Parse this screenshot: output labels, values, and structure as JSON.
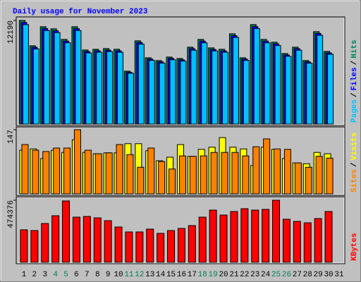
{
  "title": "Daily usage for November 2023",
  "chart_data": [
    {
      "type": "bar",
      "ylim": [
        0,
        12190
      ],
      "yticks": [
        12190
      ],
      "legend_separator": "/",
      "series": [
        {
          "name": "Hits",
          "color": "#00805c",
          "values": [
            12190,
            9213,
            11454,
            11205,
            9960,
            11454,
            8715,
            8798,
            8881,
            8798,
            6225,
            9794,
            7802,
            7470,
            7885,
            7719,
            9047,
            9960,
            8964,
            8798,
            10624,
            7802,
            11703,
            9960,
            9628,
            8300,
            9047,
            7470,
            10873,
            8549,
            null
          ]
        },
        {
          "name": "Files",
          "color": "#0000ff",
          "values": [
            11950,
            9030,
            11230,
            10980,
            9760,
            11220,
            8540,
            8620,
            8700,
            8620,
            6100,
            9600,
            7650,
            7320,
            7730,
            7560,
            8870,
            9760,
            8780,
            8620,
            10410,
            7650,
            11470,
            9760,
            9440,
            8130,
            8870,
            7320,
            10660,
            8380,
            null
          ]
        },
        {
          "name": "Pages",
          "color": "#00c0ff",
          "values": [
            11700,
            8840,
            11000,
            10760,
            9560,
            11000,
            8370,
            8450,
            8530,
            8450,
            5980,
            9400,
            7490,
            7170,
            7570,
            7410,
            8690,
            9560,
            8610,
            8450,
            10200,
            7490,
            11230,
            9560,
            9240,
            7970,
            8690,
            7170,
            10440,
            8210,
            null
          ]
        }
      ]
    },
    {
      "type": "bar",
      "ylim": [
        0,
        147
      ],
      "yticks": [
        147
      ],
      "legend_separator": "/",
      "series": [
        {
          "name": "Visits",
          "color": "#ffff00",
          "values": [
            100,
            103,
            81,
            100,
            95,
            124,
            95,
            92,
            94,
            94,
            115,
            115,
            99,
            76,
            84,
            113,
            86,
            102,
            107,
            129,
            107,
            103,
            65,
            107,
            102,
            81,
            71,
            69,
            95,
            92,
            null
          ]
        },
        {
          "name": "Sites",
          "color": "#ff8000",
          "values": [
            113,
            100,
            97,
            105,
            105,
            147,
            100,
            92,
            94,
            113,
            90,
            61,
            105,
            74,
            57,
            87,
            86,
            87,
            95,
            95,
            95,
            87,
            108,
            126,
            103,
            102,
            71,
            61,
            86,
            82,
            null
          ]
        }
      ]
    },
    {
      "type": "bar",
      "ylim": [
        0,
        474376
      ],
      "yticks": [
        474376
      ],
      "categories": [
        "1",
        "2",
        "3",
        "4",
        "5",
        "6",
        "7",
        "8",
        "9",
        "10",
        "11",
        "12",
        "13",
        "14",
        "15",
        "16",
        "17",
        "18",
        "19",
        "20",
        "21",
        "22",
        "23",
        "24",
        "25",
        "26",
        "27",
        "28",
        "29",
        "30",
        "31"
      ],
      "category_colors": [
        "#000000",
        "#000000",
        "#000000",
        "#00805c",
        "#00805c",
        "#000000",
        "#000000",
        "#000000",
        "#000000",
        "#000000",
        "#00805c",
        "#00805c",
        "#000000",
        "#000000",
        "#000000",
        "#000000",
        "#000000",
        "#00805c",
        "#00805c",
        "#000000",
        "#000000",
        "#000000",
        "#000000",
        "#000000",
        "#00805c",
        "#00805c",
        "#000000",
        "#000000",
        "#000000",
        "#000000",
        "#000000"
      ],
      "series": [
        {
          "name": "KBytes",
          "color": "#ff0000",
          "values": [
            247968,
            242577,
            296483,
            355780,
            468982,
            344998,
            350389,
            339608,
            318045,
            269530,
            231796,
            231796,
            253358,
            221015,
            242577,
            258749,
            280311,
            344998,
            398904,
            361170,
            388123,
            409685,
            398904,
            404295,
            474376,
            328827,
            312655,
            301874,
            334218,
            388123,
            null
          ]
        }
      ]
    }
  ]
}
